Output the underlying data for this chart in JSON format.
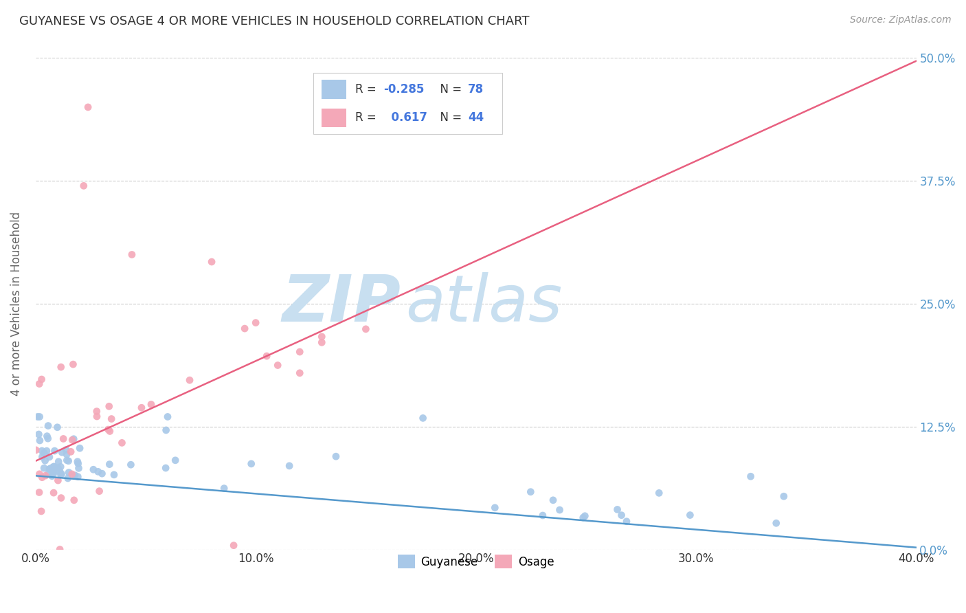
{
  "title": "GUYANESE VS OSAGE 4 OR MORE VEHICLES IN HOUSEHOLD CORRELATION CHART",
  "source": "Source: ZipAtlas.com",
  "ylabel_label": "4 or more Vehicles in Household",
  "legend_label1": "Guyanese",
  "legend_label2": "Osage",
  "R1": "-0.285",
  "N1": "78",
  "R2": "0.617",
  "N2": "44",
  "color_blue": "#a8c8e8",
  "color_pink": "#f4a8b8",
  "color_line_blue": "#5599cc",
  "color_line_pink": "#e86080",
  "watermark_zip_color": "#c8dff0",
  "watermark_atlas_color": "#c8dff0",
  "title_color": "#333333",
  "source_color": "#999999",
  "axis_label_color": "#666666",
  "tick_color_right": "#5599cc",
  "xmin": 0.0,
  "xmax": 0.4,
  "ymin": 0.0,
  "ymax": 0.5,
  "grid_color": "#cccccc",
  "background_color": "#ffffff",
  "pink_line_x0": 0.0,
  "pink_line_y0": 0.09,
  "pink_line_x1": 0.4,
  "pink_line_y1": 0.497,
  "blue_line_x0": 0.0,
  "blue_line_y0": 0.075,
  "blue_line_x1": 0.4,
  "blue_line_y1": 0.002
}
